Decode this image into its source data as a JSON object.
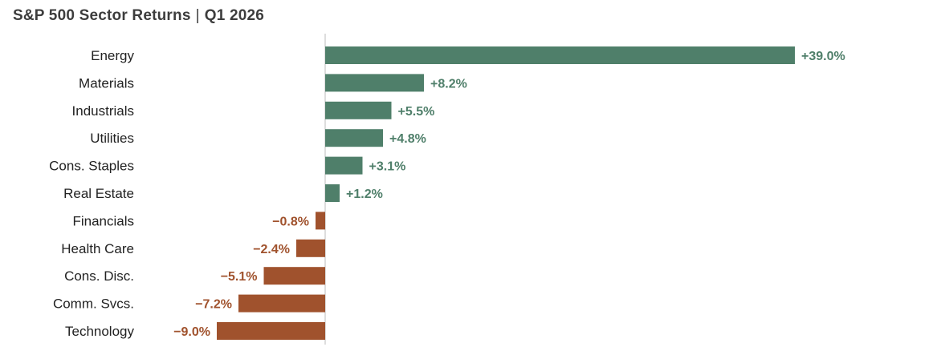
{
  "title": {
    "main": "S&P 500 Sector Returns",
    "separator": "|",
    "period": "Q1 2026"
  },
  "colors": {
    "positive": "#4f7f6a",
    "negative": "#a0522d",
    "axis": "#bbbbbb",
    "label": "#222222",
    "title": "#3d3d3d"
  },
  "chart_data": {
    "type": "bar",
    "orientation": "horizontal",
    "title": "S&P 500 Sector Returns | Q1 2026",
    "xlabel": "",
    "ylabel": "",
    "unit": "%",
    "grid": false,
    "legend": "none",
    "xlim": [
      -9.0,
      39.0
    ],
    "categories": [
      "Energy",
      "Materials",
      "Industrials",
      "Utilities",
      "Cons. Staples",
      "Real Estate",
      "Financials",
      "Health Care",
      "Cons. Disc.",
      "Comm. Svcs.",
      "Technology"
    ],
    "values": [
      39.0,
      8.2,
      5.5,
      4.8,
      3.1,
      1.2,
      -0.8,
      -2.4,
      -5.1,
      -7.2,
      -9.0
    ],
    "labels": [
      "+39.0%",
      "+8.2%",
      "+5.5%",
      "+4.8%",
      "+3.1%",
      "+1.2%",
      "−0.8%",
      "−2.4%",
      "−5.1%",
      "−7.2%",
      "−9.0%"
    ]
  }
}
